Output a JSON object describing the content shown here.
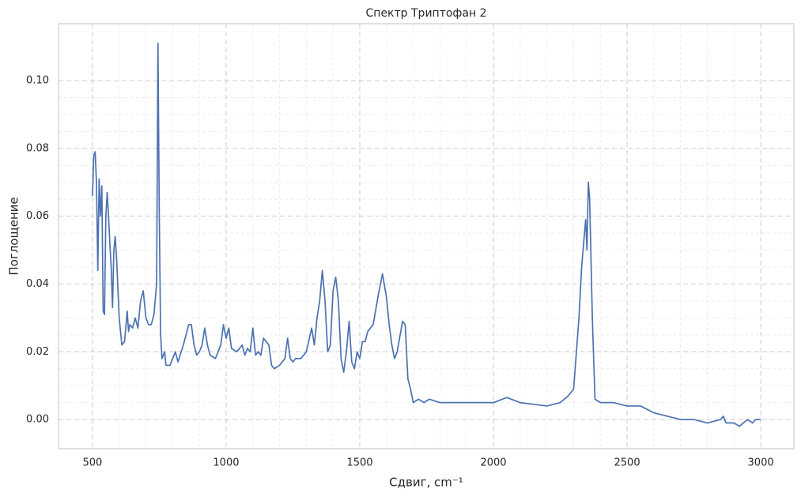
{
  "chart_data": {
    "type": "line",
    "title": "Спектр Триптофан 2",
    "xlabel": "Сдвиг, cm⁻¹",
    "ylabel": "Поглощение",
    "color": "#4c72b0",
    "grid": true,
    "minor_grid": true,
    "xlim": [
      373,
      3124
    ],
    "ylim": [
      -0.0086,
      0.1168
    ],
    "xticks": [
      500,
      1000,
      1500,
      2000,
      2500,
      3000
    ],
    "yticks": [
      {
        "value": 0,
        "label": "0.00"
      },
      {
        "value": 0.02,
        "label": "0.02"
      },
      {
        "value": 0.04,
        "label": "0.04"
      },
      {
        "value": 0.06,
        "label": "0.06"
      },
      {
        "value": 0.08,
        "label": "0.08"
      },
      {
        "value": 0.1,
        "label": "0.10"
      }
    ],
    "x": [
      500,
      505,
      510,
      515,
      520,
      525,
      530,
      535,
      540,
      545,
      550,
      555,
      560,
      565,
      570,
      575,
      580,
      585,
      590,
      600,
      610,
      620,
      630,
      635,
      640,
      650,
      660,
      670,
      680,
      690,
      700,
      710,
      720,
      730,
      740,
      745,
      750,
      755,
      760,
      770,
      775,
      790,
      800,
      810,
      820,
      840,
      850,
      860,
      870,
      880,
      890,
      900,
      910,
      920,
      930,
      940,
      960,
      980,
      990,
      1000,
      1010,
      1020,
      1040,
      1060,
      1070,
      1080,
      1090,
      1100,
      1110,
      1120,
      1130,
      1140,
      1150,
      1160,
      1170,
      1180,
      1200,
      1220,
      1230,
      1240,
      1250,
      1260,
      1280,
      1300,
      1320,
      1330,
      1340,
      1350,
      1360,
      1370,
      1380,
      1390,
      1400,
      1410,
      1420,
      1430,
      1440,
      1450,
      1460,
      1470,
      1480,
      1490,
      1500,
      1510,
      1520,
      1530,
      1550,
      1570,
      1585,
      1600,
      1610,
      1620,
      1630,
      1640,
      1660,
      1670,
      1680,
      1690,
      1700,
      1720,
      1740,
      1760,
      1800,
      1850,
      1900,
      1950,
      2000,
      2050,
      2100,
      2150,
      2200,
      2250,
      2280,
      2300,
      2320,
      2330,
      2345,
      2350,
      2355,
      2360,
      2370,
      2380,
      2400,
      2450,
      2500,
      2550,
      2600,
      2650,
      2700,
      2750,
      2800,
      2850,
      2860,
      2870,
      2900,
      2920,
      2950,
      2970,
      2980,
      3000
    ],
    "values": [
      0.066,
      0.078,
      0.079,
      0.07,
      0.044,
      0.071,
      0.06,
      0.069,
      0.032,
      0.031,
      0.06,
      0.067,
      0.06,
      0.052,
      0.045,
      0.033,
      0.05,
      0.054,
      0.048,
      0.03,
      0.022,
      0.023,
      0.032,
      0.026,
      0.028,
      0.027,
      0.03,
      0.027,
      0.035,
      0.038,
      0.03,
      0.028,
      0.028,
      0.031,
      0.04,
      0.111,
      0.06,
      0.025,
      0.018,
      0.02,
      0.016,
      0.016,
      0.018,
      0.02,
      0.017,
      0.022,
      0.025,
      0.028,
      0.028,
      0.022,
      0.019,
      0.02,
      0.022,
      0.027,
      0.022,
      0.019,
      0.018,
      0.022,
      0.028,
      0.024,
      0.027,
      0.021,
      0.02,
      0.022,
      0.019,
      0.021,
      0.02,
      0.027,
      0.019,
      0.02,
      0.019,
      0.024,
      0.023,
      0.022,
      0.016,
      0.015,
      0.016,
      0.018,
      0.024,
      0.018,
      0.017,
      0.018,
      0.018,
      0.02,
      0.027,
      0.022,
      0.03,
      0.035,
      0.044,
      0.035,
      0.02,
      0.022,
      0.038,
      0.042,
      0.035,
      0.018,
      0.014,
      0.02,
      0.029,
      0.017,
      0.015,
      0.02,
      0.018,
      0.023,
      0.023,
      0.026,
      0.028,
      0.037,
      0.043,
      0.036,
      0.028,
      0.022,
      0.018,
      0.02,
      0.029,
      0.028,
      0.012,
      0.009,
      0.005,
      0.006,
      0.005,
      0.006,
      0.005,
      0.005,
      0.005,
      0.005,
      0.005,
      0.0065,
      0.005,
      0.0045,
      0.004,
      0.005,
      0.007,
      0.009,
      0.03,
      0.045,
      0.059,
      0.05,
      0.07,
      0.065,
      0.03,
      0.006,
      0.005,
      0.005,
      0.004,
      0.004,
      0.002,
      0.001,
      0.0,
      0.0,
      -0.001,
      0.0,
      0.001,
      -0.001,
      -0.001,
      -0.002,
      0.0,
      -0.001,
      0.0,
      0.0
    ]
  }
}
